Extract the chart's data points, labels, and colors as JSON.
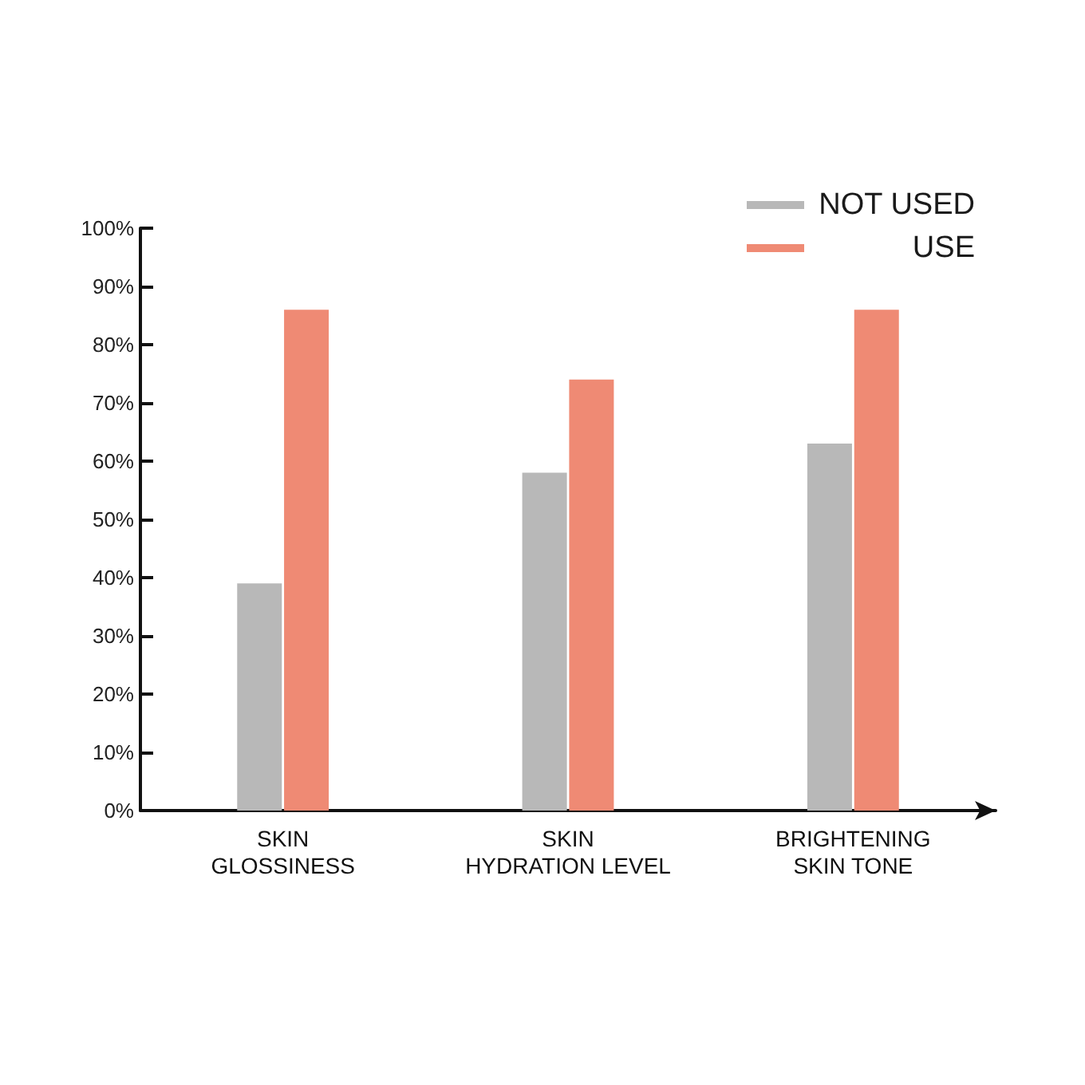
{
  "chart_data": {
    "type": "bar",
    "categories": [
      "SKIN\nGLOSSINESS",
      "SKIN\nHYDRATION LEVEL",
      "BRIGHTENING\nSKIN TONE"
    ],
    "series": [
      {
        "name": "NOT USED",
        "color": "#b8b8b8",
        "values": [
          39,
          58,
          63
        ]
      },
      {
        "name": "USE",
        "color": "#ef8a74",
        "values": [
          86,
          74,
          86
        ]
      }
    ],
    "ylim": [
      0,
      100
    ],
    "yticks": [
      {
        "value": 0,
        "label": "0%"
      },
      {
        "value": 10,
        "label": "10%"
      },
      {
        "value": 20,
        "label": "20%"
      },
      {
        "value": 30,
        "label": "30%"
      },
      {
        "value": 40,
        "label": "40%"
      },
      {
        "value": 50,
        "label": "50%"
      },
      {
        "value": 60,
        "label": "60%"
      },
      {
        "value": 70,
        "label": "70%"
      },
      {
        "value": 80,
        "label": "80%"
      },
      {
        "value": 90,
        "label": "90%"
      },
      {
        "value": 100,
        "label": "100%"
      }
    ],
    "legend": "top right"
  }
}
